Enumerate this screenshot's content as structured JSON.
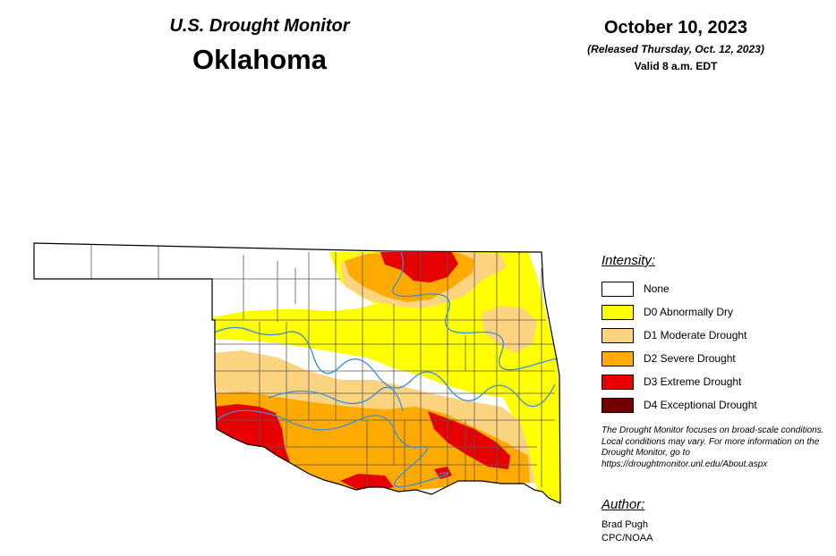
{
  "header": {
    "program": "U.S. Drought Monitor",
    "state": "Oklahoma",
    "date": "October 10, 2023",
    "released": "(Released Thursday, Oct. 12, 2023)",
    "valid": "Valid 8 a.m. EDT"
  },
  "legend": {
    "title": "Intensity:",
    "items": [
      {
        "label": "None",
        "color": "#ffffff"
      },
      {
        "label": "D0 Abnormally Dry",
        "color": "#ffff00"
      },
      {
        "label": "D1 Moderate Drought",
        "color": "#fcd37f"
      },
      {
        "label": "D2 Severe Drought",
        "color": "#ffaa00"
      },
      {
        "label": "D3 Extreme Drought",
        "color": "#e60000"
      },
      {
        "label": "D4 Exceptional Drought",
        "color": "#730000"
      }
    ]
  },
  "note": "The Drought Monitor focuses on broad-scale conditions. Local conditions may vary. For more information on the Drought Monitor, go to https://droughtmonitor.unl.edu/About.aspx",
  "author": {
    "title": "Author:",
    "name": "Brad Pugh",
    "org": "CPC/NOAA"
  },
  "colors": {
    "river": "#3a8ee0",
    "county_line": "#5a5a5a",
    "outline": "#000000"
  }
}
